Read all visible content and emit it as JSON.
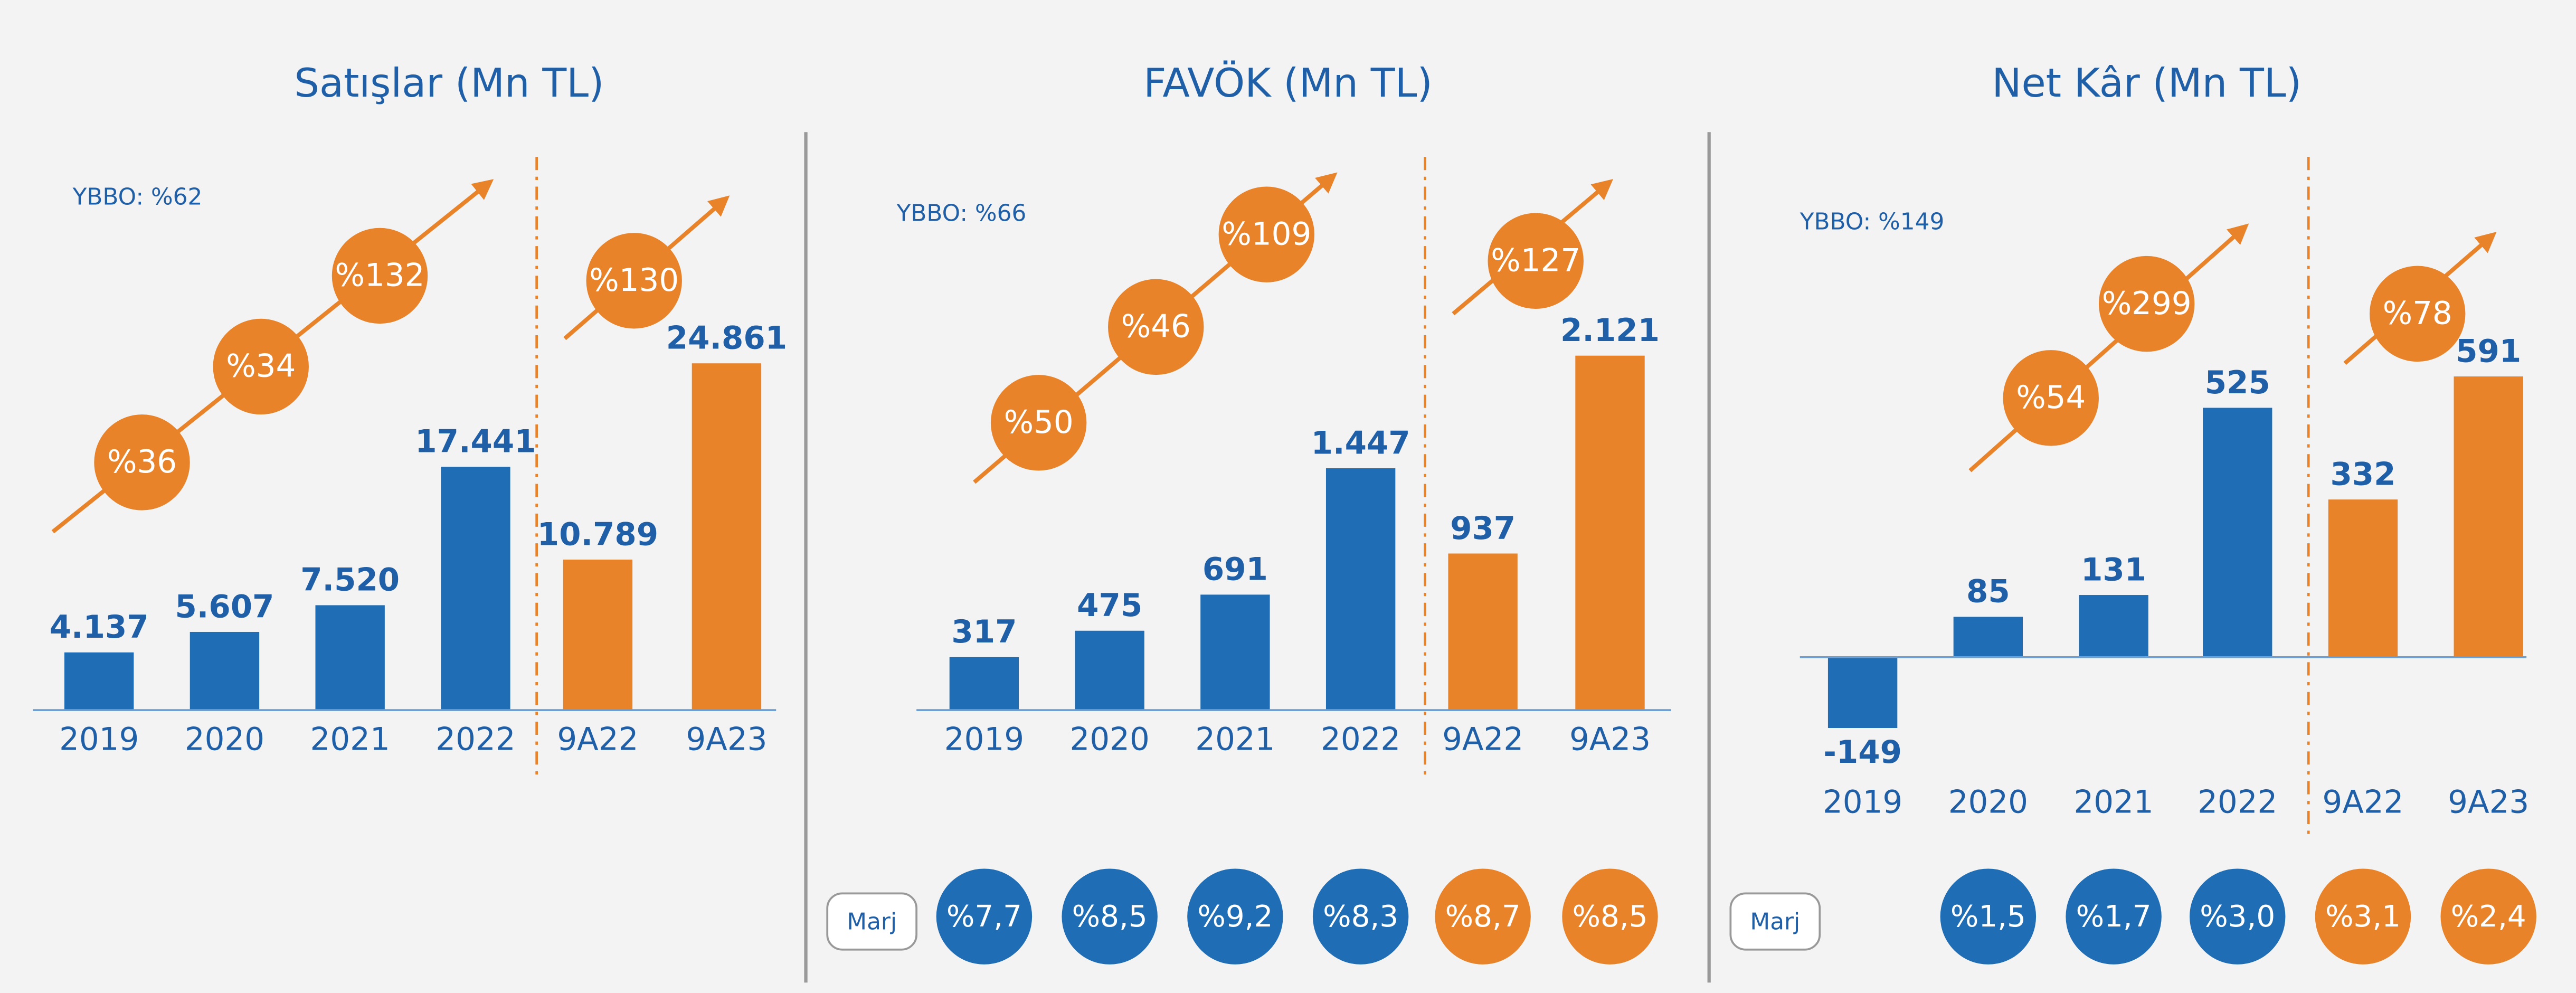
{
  "chart_data": [
    {
      "type": "bar",
      "title": "Satışlar (Mn TL)",
      "annotation": "YBBO: %62",
      "categories": [
        "2019",
        "2020",
        "2021",
        "2022",
        "9A22",
        "9A23"
      ],
      "values": [
        4137,
        5607,
        7520,
        17441,
        10789,
        24861
      ],
      "value_labels": [
        "4.137",
        "5.607",
        "7.520",
        "17.441",
        "10.789",
        "24.861"
      ],
      "colors": [
        "#1f6db5",
        "#1f6db5",
        "#1f6db5",
        "#1f6db5",
        "#e8832a",
        "#e8832a"
      ],
      "ylim": [
        0,
        30000
      ],
      "growth": [
        "%36",
        "%34",
        "%132"
      ],
      "growth_period": "%130"
    },
    {
      "type": "bar",
      "title": "FAVÖK (Mn TL)",
      "annotation": "YBBO: %66",
      "categories": [
        "2019",
        "2020",
        "2021",
        "2022",
        "9A22",
        "9A23"
      ],
      "values": [
        317,
        475,
        691,
        1447,
        937,
        2121
      ],
      "value_labels": [
        "317",
        "475",
        "691",
        "1.447",
        "937",
        "2.121"
      ],
      "colors": [
        "#1f6db5",
        "#1f6db5",
        "#1f6db5",
        "#1f6db5",
        "#e8832a",
        "#e8832a"
      ],
      "ylim": [
        0,
        2500
      ],
      "growth": [
        "%50",
        "%46",
        "%109"
      ],
      "growth_period": "%127",
      "margin_label": "Marj",
      "margins": [
        "%7,7",
        "%8,5",
        "%9,2",
        "%8,3",
        "%8,7",
        "%8,5"
      ]
    },
    {
      "type": "bar",
      "title": "Net Kâr (Mn TL)",
      "annotation": "YBBO: %149",
      "categories": [
        "2019",
        "2020",
        "2021",
        "2022",
        "9A22",
        "9A23"
      ],
      "values": [
        -149,
        85,
        131,
        525,
        332,
        591
      ],
      "colors": [
        "#1f6db5",
        "#1f6db5",
        "#1f6db5",
        "#1f6db5",
        "#e8832a",
        "#e8832a"
      ],
      "ylim": [
        -200,
        700
      ],
      "growth": [
        "%54",
        "%299"
      ],
      "growth_period": "%78",
      "margin_label": "Marj",
      "margins": [
        null,
        "%1,5",
        "%1,7",
        "%3,0",
        "%3,1",
        "%2,4"
      ]
    }
  ]
}
